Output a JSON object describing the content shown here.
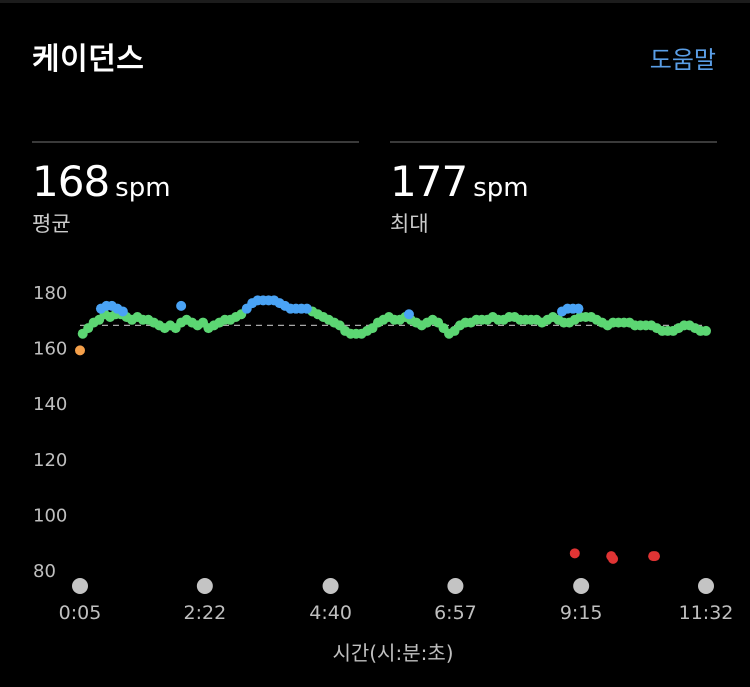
{
  "header": {
    "title": "케이던스",
    "help_label": "도움말"
  },
  "stats": [
    {
      "value": "168",
      "unit": "spm",
      "label": "평균"
    },
    {
      "value": "177",
      "unit": "spm",
      "label": "최대"
    }
  ],
  "colors": {
    "background": "#000000",
    "help_link": "#5a9ee6",
    "zone_green": "#5cd673",
    "zone_blue": "#4aa3f5",
    "zone_orange": "#f5a04a",
    "zone_red": "#e03434",
    "axis_text": "#bfbfbf",
    "x_marker": "#c4c4c4",
    "average_line": "#a8a8a8"
  },
  "chart_data": {
    "type": "scatter",
    "xlabel": "시간(시:분:초)",
    "ylabel": "",
    "x_unit": "seconds",
    "xlim": [
      5,
      692
    ],
    "ylim": [
      80,
      180
    ],
    "y_ticks": [
      180,
      160,
      140,
      120,
      100,
      80
    ],
    "x_ticks": [
      {
        "label": "0:05",
        "t": 5
      },
      {
        "label": "2:22",
        "t": 142
      },
      {
        "label": "4:40",
        "t": 280
      },
      {
        "label": "6:57",
        "t": 417
      },
      {
        "label": "9:15",
        "t": 555
      },
      {
        "label": "11:32",
        "t": 692
      }
    ],
    "average_line": 168,
    "grid": false,
    "legend": "none",
    "series": [
      {
        "color_key": "zone_green",
        "points": [
          [
            8,
            165
          ],
          [
            14,
            167
          ],
          [
            20,
            169
          ],
          [
            26,
            170
          ],
          [
            32,
            172
          ],
          [
            38,
            171
          ],
          [
            44,
            172
          ],
          [
            50,
            172
          ],
          [
            56,
            171
          ],
          [
            62,
            170
          ],
          [
            68,
            171
          ],
          [
            74,
            170
          ],
          [
            80,
            170
          ],
          [
            86,
            169
          ],
          [
            92,
            168
          ],
          [
            98,
            167
          ],
          [
            104,
            168
          ],
          [
            110,
            167
          ],
          [
            116,
            169
          ],
          [
            122,
            170
          ],
          [
            128,
            169
          ],
          [
            134,
            168
          ],
          [
            140,
            169
          ],
          [
            146,
            167
          ],
          [
            152,
            168
          ],
          [
            158,
            169
          ],
          [
            164,
            170
          ],
          [
            170,
            170
          ],
          [
            176,
            171
          ],
          [
            182,
            172
          ],
          [
            260,
            173
          ],
          [
            266,
            172
          ],
          [
            272,
            171
          ],
          [
            278,
            170
          ],
          [
            284,
            169
          ],
          [
            290,
            168
          ],
          [
            296,
            166
          ],
          [
            302,
            165
          ],
          [
            308,
            165
          ],
          [
            314,
            165
          ],
          [
            320,
            166
          ],
          [
            326,
            167
          ],
          [
            332,
            169
          ],
          [
            338,
            170
          ],
          [
            344,
            171
          ],
          [
            350,
            170
          ],
          [
            356,
            170
          ],
          [
            362,
            171
          ],
          [
            368,
            170
          ],
          [
            374,
            169
          ],
          [
            380,
            168
          ],
          [
            386,
            169
          ],
          [
            392,
            170
          ],
          [
            398,
            169
          ],
          [
            404,
            167
          ],
          [
            410,
            165
          ],
          [
            416,
            166
          ],
          [
            422,
            168
          ],
          [
            428,
            169
          ],
          [
            434,
            169
          ],
          [
            440,
            170
          ],
          [
            446,
            170
          ],
          [
            452,
            170
          ],
          [
            458,
            171
          ],
          [
            464,
            170
          ],
          [
            470,
            170
          ],
          [
            476,
            171
          ],
          [
            482,
            171
          ],
          [
            488,
            170
          ],
          [
            494,
            170
          ],
          [
            500,
            170
          ],
          [
            506,
            170
          ],
          [
            512,
            169
          ],
          [
            518,
            170
          ],
          [
            524,
            171
          ],
          [
            530,
            170
          ],
          [
            536,
            169
          ],
          [
            542,
            169
          ],
          [
            548,
            170
          ],
          [
            554,
            171
          ],
          [
            560,
            171
          ],
          [
            566,
            171
          ],
          [
            572,
            170
          ],
          [
            578,
            169
          ],
          [
            584,
            168
          ],
          [
            590,
            169
          ],
          [
            596,
            169
          ],
          [
            602,
            169
          ],
          [
            608,
            169
          ],
          [
            614,
            168
          ],
          [
            620,
            168
          ],
          [
            626,
            168
          ],
          [
            632,
            168
          ],
          [
            638,
            167
          ],
          [
            644,
            166
          ],
          [
            650,
            166
          ],
          [
            656,
            166
          ],
          [
            662,
            167
          ],
          [
            668,
            168
          ],
          [
            674,
            168
          ],
          [
            680,
            167
          ],
          [
            686,
            166
          ],
          [
            692,
            166
          ]
        ]
      },
      {
        "color_key": "zone_blue",
        "points": [
          [
            28,
            174
          ],
          [
            34,
            175
          ],
          [
            40,
            175
          ],
          [
            46,
            174
          ],
          [
            52,
            173
          ],
          [
            116,
            175
          ],
          [
            188,
            174
          ],
          [
            194,
            176
          ],
          [
            200,
            177
          ],
          [
            206,
            177
          ],
          [
            212,
            177
          ],
          [
            218,
            177
          ],
          [
            224,
            176
          ],
          [
            230,
            175
          ],
          [
            236,
            174
          ],
          [
            242,
            174
          ],
          [
            248,
            174
          ],
          [
            254,
            174
          ],
          [
            366,
            172
          ],
          [
            534,
            173
          ],
          [
            540,
            174
          ],
          [
            546,
            174
          ],
          [
            552,
            174
          ]
        ]
      },
      {
        "color_key": "zone_orange",
        "points": [
          [
            5,
            159
          ]
        ]
      },
      {
        "color_key": "zone_red",
        "points": [
          [
            548,
            86
          ],
          [
            588,
            85
          ],
          [
            590,
            84
          ],
          [
            634,
            85
          ],
          [
            636,
            85
          ]
        ]
      }
    ]
  }
}
